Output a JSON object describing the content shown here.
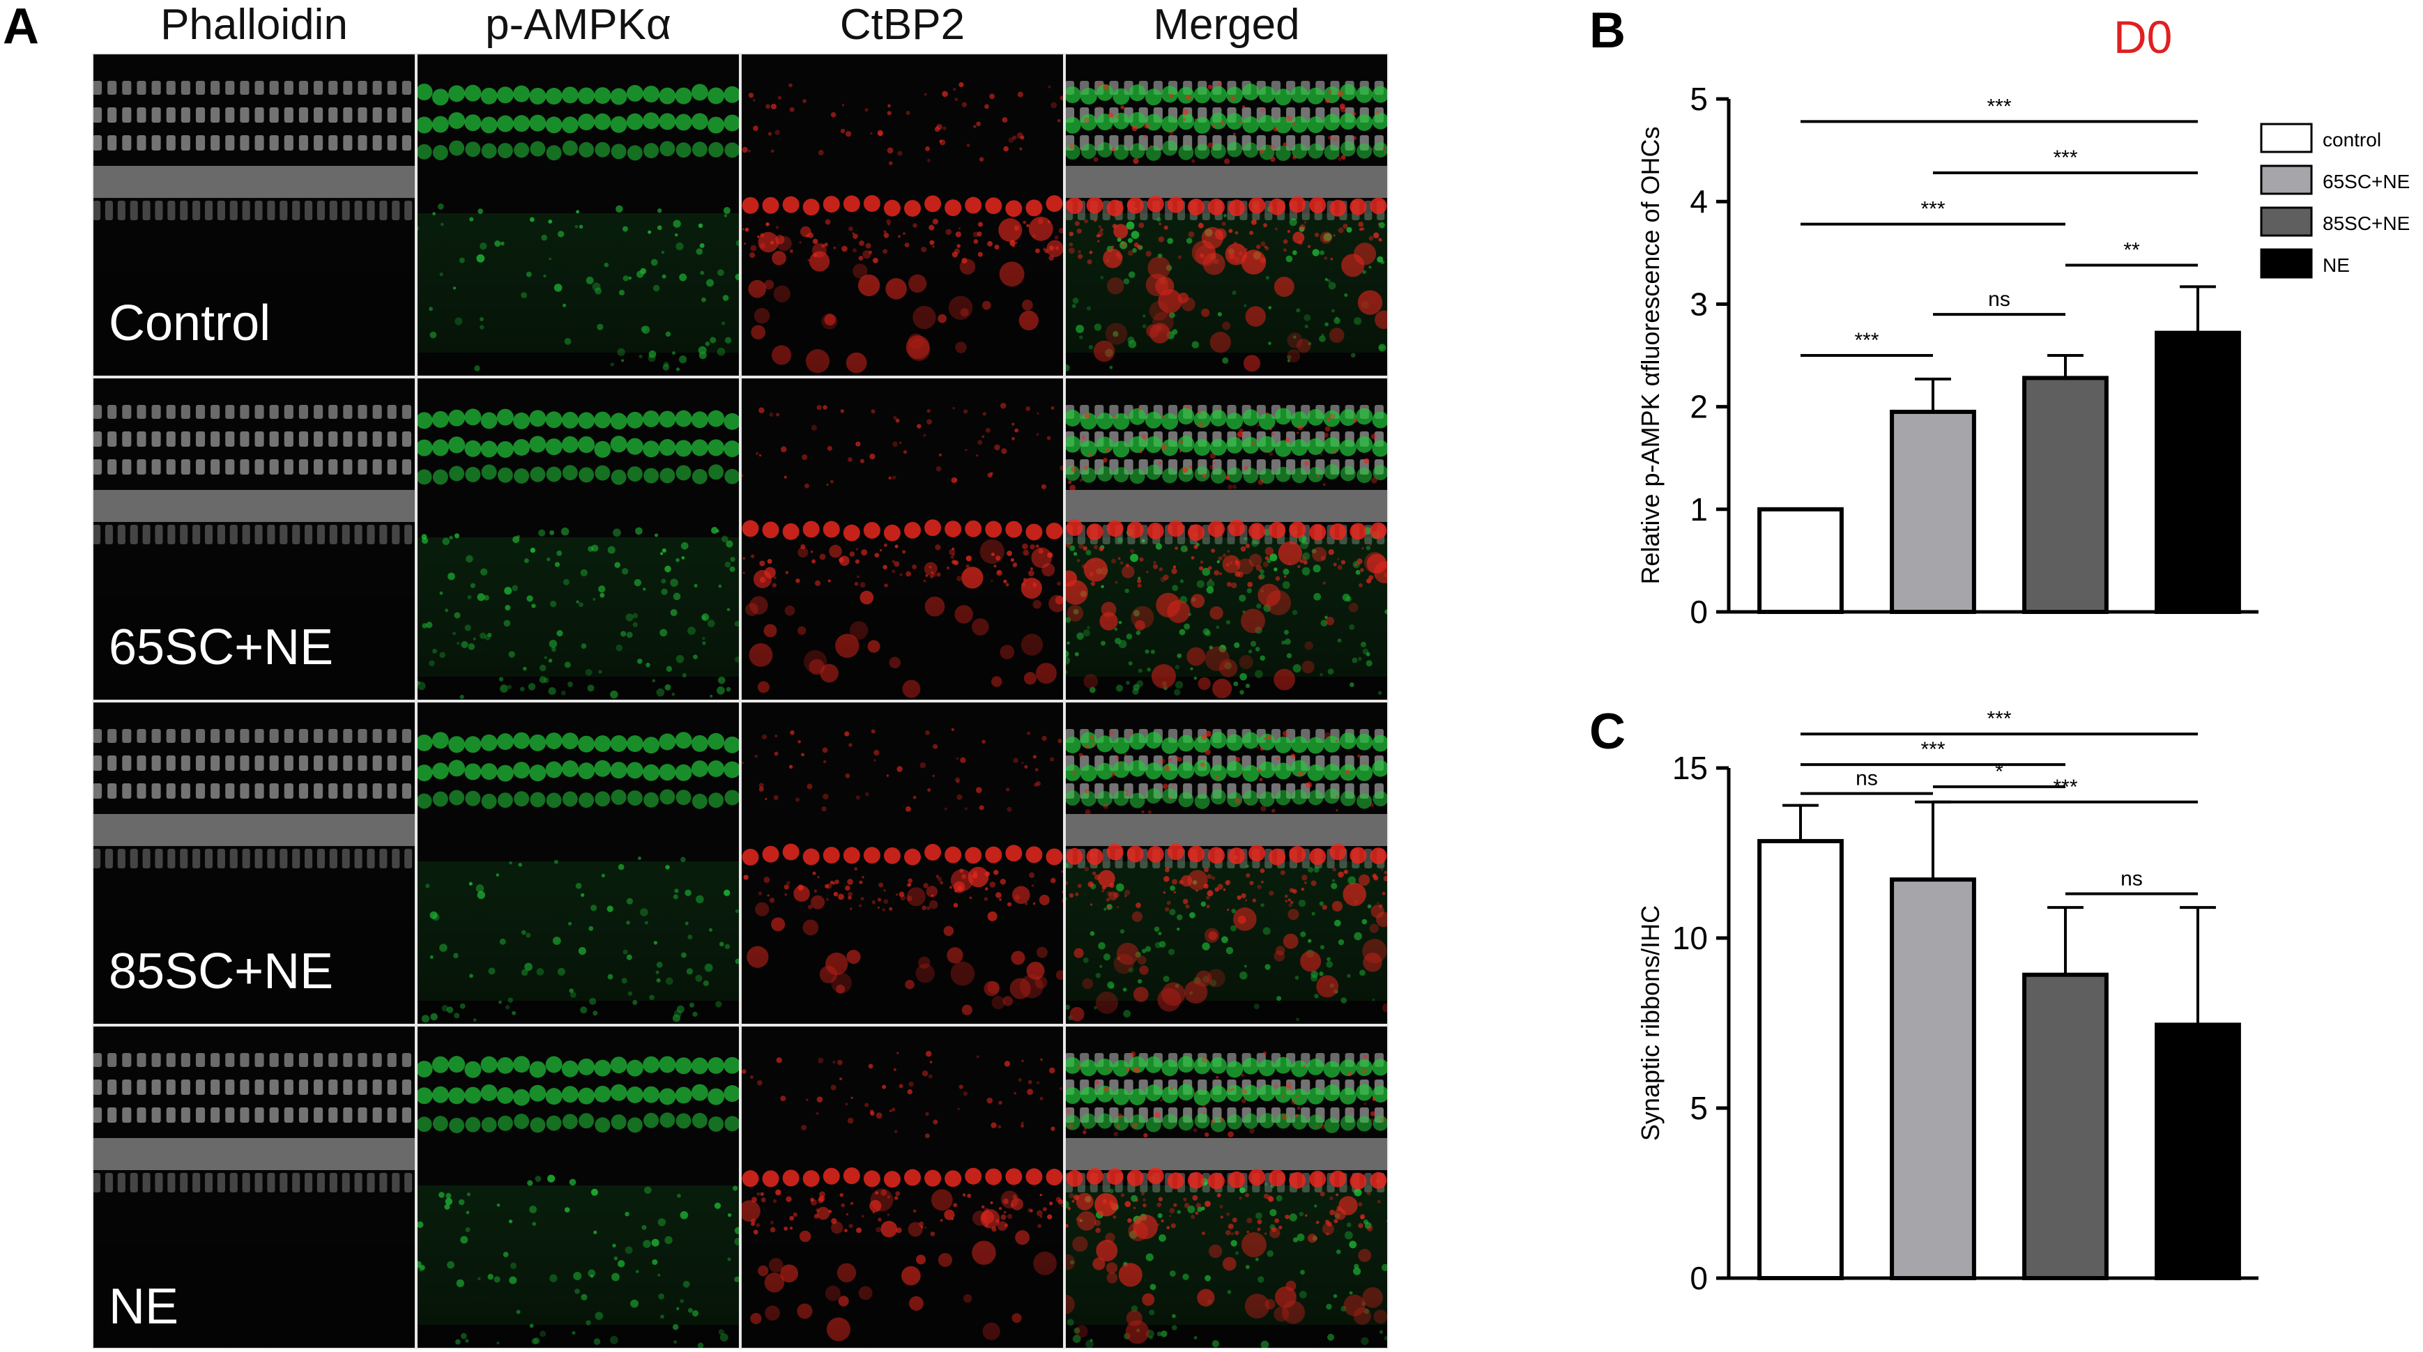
{
  "panel_letters": {
    "a": "A",
    "b": "B",
    "c": "C"
  },
  "column_headers": [
    "Phalloidin",
    "p-AMPKα",
    "CtBP2",
    "Merged"
  ],
  "row_labels": [
    "Control",
    "65SC+NE",
    "85SC+NE",
    "NE"
  ],
  "channel_colors": {
    "phalloidin": "#bdbdbd",
    "pampk": "#22c83a",
    "ctbp2": "#e8281e"
  },
  "timepoint": "D0",
  "legend": [
    {
      "label": "control",
      "color": "#ffffff"
    },
    {
      "label": "65SC+NE",
      "color": "#a6a6aa"
    },
    {
      "label": "85SC+NE",
      "color": "#5f5f60"
    },
    {
      "label": "NE",
      "color": "#000000"
    }
  ],
  "chart_data": [
    {
      "type": "bar",
      "panel": "B",
      "categories": [
        "control",
        "65SC+NE",
        "85SC+NE",
        "NE"
      ],
      "values": [
        1.0,
        1.95,
        2.28,
        2.72
      ],
      "errors": [
        0,
        0.32,
        0.22,
        0.45
      ],
      "colors": [
        "#ffffff",
        "#a6a6aa",
        "#5f5f60",
        "#000000"
      ],
      "ylabel": "Relative p-AMPK αfluorescence of OHCs",
      "ylim": [
        0,
        5
      ],
      "yticks": [
        "0",
        "1",
        "2",
        "3",
        "4",
        "5"
      ],
      "significance": [
        {
          "from": 0,
          "to": 3,
          "y": 4.78,
          "label": "***"
        },
        {
          "from": 1,
          "to": 3,
          "y": 4.28,
          "label": "***"
        },
        {
          "from": 0,
          "to": 2,
          "y": 3.78,
          "label": "***"
        },
        {
          "from": 2,
          "to": 3,
          "y": 3.38,
          "label": "**"
        },
        {
          "from": 1,
          "to": 2,
          "y": 2.9,
          "label": "ns"
        },
        {
          "from": 0,
          "to": 1,
          "y": 2.5,
          "label": "***"
        }
      ]
    },
    {
      "type": "bar",
      "panel": "C",
      "categories": [
        "control",
        "65SC+NE",
        "85SC+NE",
        "NE"
      ],
      "values": [
        12.85,
        11.72,
        8.92,
        7.45
      ],
      "errors": [
        1.05,
        2.28,
        1.98,
        3.45
      ],
      "colors": [
        "#ffffff",
        "#a6a6aa",
        "#5f5f60",
        "#000000"
      ],
      "ylabel": "Synaptic ribbons/IHC",
      "ylim": [
        0,
        15
      ],
      "yticks": [
        "0",
        "5",
        "10",
        "15"
      ],
      "significance": [
        {
          "from": 0,
          "to": 3,
          "y": 16.0,
          "label": "***"
        },
        {
          "from": 0,
          "to": 2,
          "y": 15.1,
          "label": "***"
        },
        {
          "from": 1,
          "to": 2,
          "y": 14.45,
          "label": "*"
        },
        {
          "from": 0,
          "to": 1,
          "y": 14.25,
          "label": "ns"
        },
        {
          "from": 1,
          "to": 3,
          "y": 14.0,
          "label": "***"
        },
        {
          "from": 2,
          "to": 3,
          "y": 11.3,
          "label": "ns"
        }
      ]
    }
  ]
}
